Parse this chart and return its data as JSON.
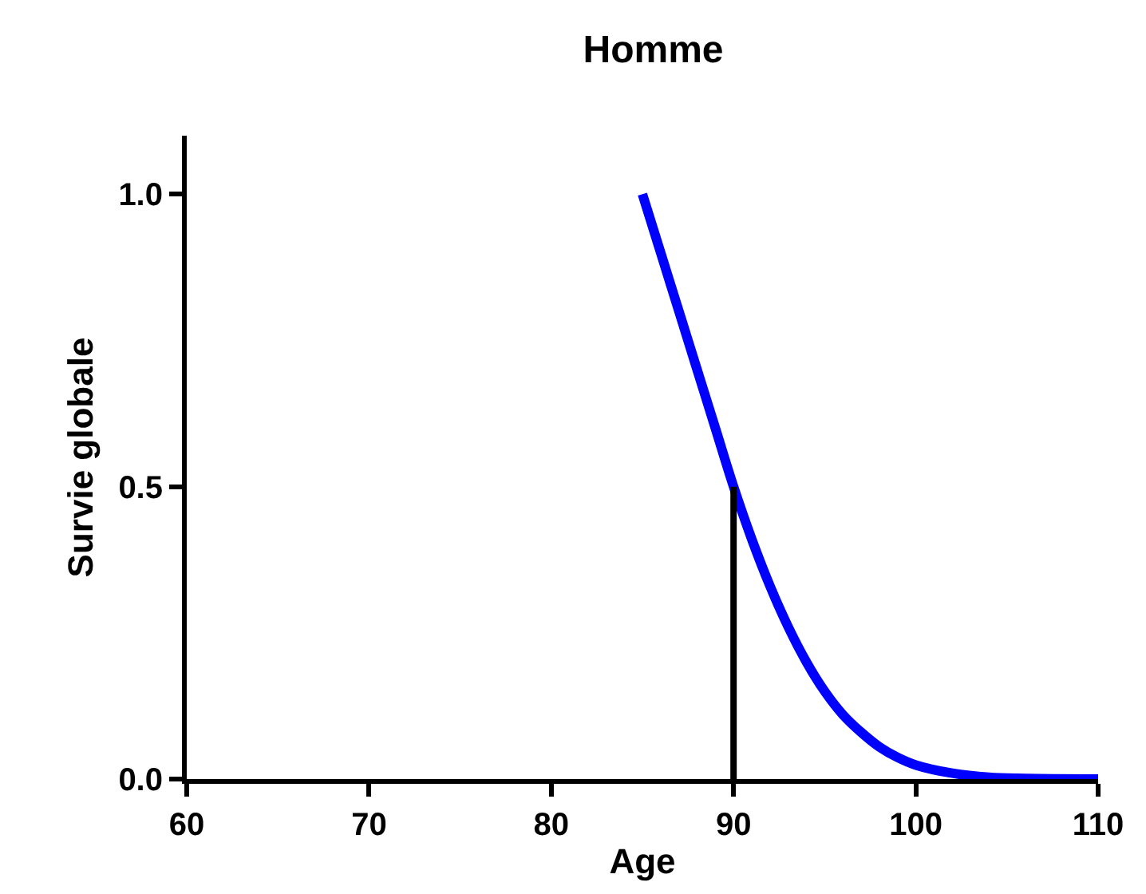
{
  "chart_data": {
    "type": "line",
    "title": "Homme",
    "xlabel": "Age",
    "ylabel": "Survie globale",
    "xlim": [
      60,
      110
    ],
    "xticks": [
      60,
      70,
      80,
      90,
      100,
      110
    ],
    "ylim": [
      0,
      1.1
    ],
    "yticks": [
      {
        "value": 0,
        "label": "0.0"
      },
      {
        "value": 0.5,
        "label": "0.5"
      },
      {
        "value": 1,
        "label": "1.0"
      }
    ],
    "marker": "none",
    "line_style": "solid",
    "series": [
      {
        "color": "#0000ff",
        "x": [
          85,
          86,
          87,
          88,
          89,
          90,
          91,
          92,
          93,
          94,
          95,
          96,
          97,
          98,
          99,
          100,
          102,
          104,
          106,
          110
        ],
        "values": [
          1.0,
          0.9,
          0.8,
          0.7,
          0.6,
          0.5,
          0.41,
          0.33,
          0.26,
          0.2,
          0.15,
          0.11,
          0.08,
          0.055,
          0.037,
          0.024,
          0.01,
          0.003,
          0.001,
          0.0
        ]
      },
      {
        "color": "#000000",
        "x": [
          90,
          90
        ],
        "values": [
          0,
          0.5
        ]
      }
    ]
  }
}
